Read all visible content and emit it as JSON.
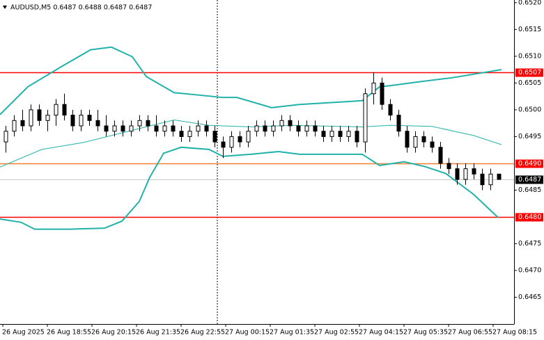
{
  "chart_data": {
    "type": "candlestick",
    "header": "AUDUSD,M5  0.6487 0.6488 0.6487 0.6487",
    "xlim": [
      -1,
      183.5
    ],
    "xticks": [
      {
        "value": 0,
        "label": "26 Aug 2025"
      },
      {
        "value": 16,
        "label": "26 Aug 18:55"
      },
      {
        "value": 32,
        "label": "26 Aug 20:15"
      },
      {
        "value": 48,
        "label": "26 Aug 21:35"
      },
      {
        "value": 64,
        "label": "26 Aug 22:55"
      },
      {
        "value": 80,
        "label": "27 Aug 00:15"
      },
      {
        "value": 96,
        "label": "27 Aug 01:35"
      },
      {
        "value": 112,
        "label": "27 Aug 02:55"
      },
      {
        "value": 128,
        "label": "27 Aug 04:15"
      },
      {
        "value": 144,
        "label": "27 Aug 05:35"
      },
      {
        "value": 160,
        "label": "27 Aug 06:55"
      },
      {
        "value": 176,
        "label": "27 Aug 08:15"
      }
    ],
    "ylim": [
      0.646,
      0.65205
    ],
    "yticks": [
      {
        "value": 0.652,
        "label": "0.6520"
      },
      {
        "value": 0.6515,
        "label": "0.6515"
      },
      {
        "value": 0.651,
        "label": "0.6510"
      },
      {
        "value": 0.6505,
        "label": "0.6505"
      },
      {
        "value": 0.65,
        "label": "0.6500"
      },
      {
        "value": 0.6495,
        "label": "0.6495"
      },
      {
        "value": 0.6485,
        "label": "0.6485"
      },
      {
        "value": 0.6475,
        "label": "0.6475"
      },
      {
        "value": 0.647,
        "label": "0.6470"
      },
      {
        "value": 0.6465,
        "label": "0.6465"
      }
    ],
    "candles": {
      "x": [
        1,
        4,
        7,
        10,
        13,
        16,
        19,
        22,
        25,
        28,
        31,
        34,
        37,
        40,
        43,
        46,
        49,
        52,
        55,
        58,
        61,
        64,
        67,
        70,
        73,
        76,
        79,
        82,
        85,
        88,
        91,
        94,
        97,
        100,
        103,
        106,
        109,
        112,
        115,
        118,
        121,
        124,
        127,
        130,
        133,
        136,
        139,
        142,
        145,
        148,
        151,
        154,
        157,
        160,
        163,
        166,
        169,
        172,
        175,
        178
      ],
      "open": [
        0.6494,
        0.6496,
        0.6498,
        0.6497,
        0.65,
        0.6498,
        0.6499,
        0.6501,
        0.6499,
        0.6497,
        0.6499,
        0.6498,
        0.6497,
        0.6496,
        0.6497,
        0.6496,
        0.6497,
        0.6498,
        0.6497,
        0.6496,
        0.6497,
        0.6496,
        0.6495,
        0.6496,
        0.6497,
        0.6496,
        0.6494,
        0.6493,
        0.6495,
        0.6494,
        0.6496,
        0.6497,
        0.6496,
        0.6497,
        0.6498,
        0.6497,
        0.6496,
        0.6497,
        0.6496,
        0.6495,
        0.6496,
        0.6495,
        0.6496,
        0.6494,
        0.6503,
        0.6505,
        0.6501,
        0.6499,
        0.6496,
        0.6493,
        0.6495,
        0.6494,
        0.6493,
        0.649,
        0.6489,
        0.6487,
        0.6489,
        0.6488,
        0.6486,
        0.6488
      ],
      "high": [
        0.6497,
        0.6499,
        0.65,
        0.6501,
        0.6501,
        0.65,
        0.6502,
        0.6503,
        0.65,
        0.65,
        0.65,
        0.65,
        0.6499,
        0.6498,
        0.6498,
        0.6498,
        0.6499,
        0.6499,
        0.6499,
        0.6498,
        0.6498,
        0.6497,
        0.6497,
        0.6498,
        0.6498,
        0.6497,
        0.6495,
        0.6496,
        0.6496,
        0.6497,
        0.6498,
        0.6498,
        0.6498,
        0.6499,
        0.6499,
        0.6498,
        0.6498,
        0.6498,
        0.6497,
        0.6497,
        0.6497,
        0.6497,
        0.6497,
        0.6504,
        0.6507,
        0.6506,
        0.6502,
        0.65,
        0.6497,
        0.6496,
        0.6496,
        0.6495,
        0.6494,
        0.6491,
        0.649,
        0.649,
        0.649,
        0.6489,
        0.6489,
        0.6488
      ],
      "low": [
        0.6492,
        0.6495,
        0.6496,
        0.6496,
        0.6497,
        0.6496,
        0.6497,
        0.6498,
        0.6496,
        0.6496,
        0.6497,
        0.6496,
        0.6495,
        0.6495,
        0.6495,
        0.6495,
        0.6496,
        0.6496,
        0.6495,
        0.6495,
        0.6495,
        0.6494,
        0.6494,
        0.6495,
        0.6495,
        0.6493,
        0.6491,
        0.6492,
        0.6493,
        0.6493,
        0.6495,
        0.6495,
        0.6495,
        0.6496,
        0.6496,
        0.6495,
        0.6495,
        0.6495,
        0.6494,
        0.6494,
        0.6494,
        0.6494,
        0.6493,
        0.6492,
        0.6501,
        0.65,
        0.6498,
        0.6495,
        0.6492,
        0.6492,
        0.6493,
        0.6492,
        0.6489,
        0.6488,
        0.6486,
        0.6486,
        0.6487,
        0.6485,
        0.6485,
        0.6487
      ],
      "close": [
        0.6496,
        0.6498,
        0.6497,
        0.65,
        0.6498,
        0.6499,
        0.6501,
        0.6499,
        0.6497,
        0.6499,
        0.6498,
        0.6497,
        0.6496,
        0.6497,
        0.6496,
        0.6497,
        0.6498,
        0.6497,
        0.6496,
        0.6497,
        0.6496,
        0.6495,
        0.6496,
        0.6497,
        0.6496,
        0.6494,
        0.6493,
        0.6495,
        0.6494,
        0.6496,
        0.6497,
        0.6496,
        0.6497,
        0.6498,
        0.6497,
        0.6496,
        0.6497,
        0.6496,
        0.6495,
        0.6496,
        0.6495,
        0.6496,
        0.6494,
        0.6503,
        0.6505,
        0.6501,
        0.6499,
        0.6496,
        0.6493,
        0.6495,
        0.6494,
        0.6493,
        0.649,
        0.6489,
        0.6487,
        0.6489,
        0.6488,
        0.6486,
        0.6488,
        0.6487
      ]
    },
    "bands": [
      {
        "color": "#20b2aa",
        "width": 2,
        "x": [
          -1,
          9,
          21.5,
          31.5,
          39,
          46.5,
          51.5,
          61.5,
          79,
          84,
          96.5,
          106.5,
          129,
          135.25,
          139,
          149,
          161.5,
          179
        ],
        "values": [
          0.64991,
          0.65043,
          0.65082,
          0.65112,
          0.65117,
          0.65099,
          0.65062,
          0.65032,
          0.65023,
          0.65023,
          0.65004,
          0.6501,
          0.65017,
          0.65043,
          0.65045,
          0.65052,
          0.6506,
          0.65075
        ]
      },
      {
        "color": "#20b2aa",
        "width": 1,
        "x": [
          -1,
          14,
          29,
          49,
          61.5,
          74,
          89,
          104,
          129,
          139,
          154,
          169,
          179
        ],
        "values": [
          0.64893,
          0.64926,
          0.64939,
          0.64965,
          0.64981,
          0.64971,
          0.64968,
          0.64971,
          0.64968,
          0.64971,
          0.64969,
          0.64952,
          0.64935
        ]
      },
      {
        "color": "#20b2aa",
        "width": 2,
        "x": [
          -1,
          6.5,
          11.5,
          24,
          36.5,
          42.75,
          49,
          52.75,
          57.75,
          64,
          74,
          79,
          89,
          99,
          106.5,
          129,
          135.25,
          144,
          151.5,
          159,
          169,
          177.75
        ],
        "values": [
          0.64796,
          0.6479,
          0.64777,
          0.64777,
          0.64779,
          0.64792,
          0.64829,
          0.64874,
          0.64919,
          0.6493,
          0.64926,
          0.64913,
          0.64917,
          0.64922,
          0.64917,
          0.64917,
          0.64896,
          0.64903,
          0.64894,
          0.64881,
          0.64842,
          0.64799
        ]
      }
    ],
    "levels": [
      {
        "value": 0.6507,
        "label": "0.6507",
        "color": "#ff0000",
        "box_color": "#ff0000"
      },
      {
        "value": 0.649,
        "label": "0.6490",
        "color": "#f08030",
        "box_color": "#ff0000"
      },
      {
        "value": 0.6487,
        "label": "0.6487",
        "color": "#c8c8c8",
        "box_color": "#000000"
      },
      {
        "value": 0.648,
        "label": "0.6480",
        "color": "#ff0000",
        "box_color": "#ff0000"
      }
    ]
  }
}
